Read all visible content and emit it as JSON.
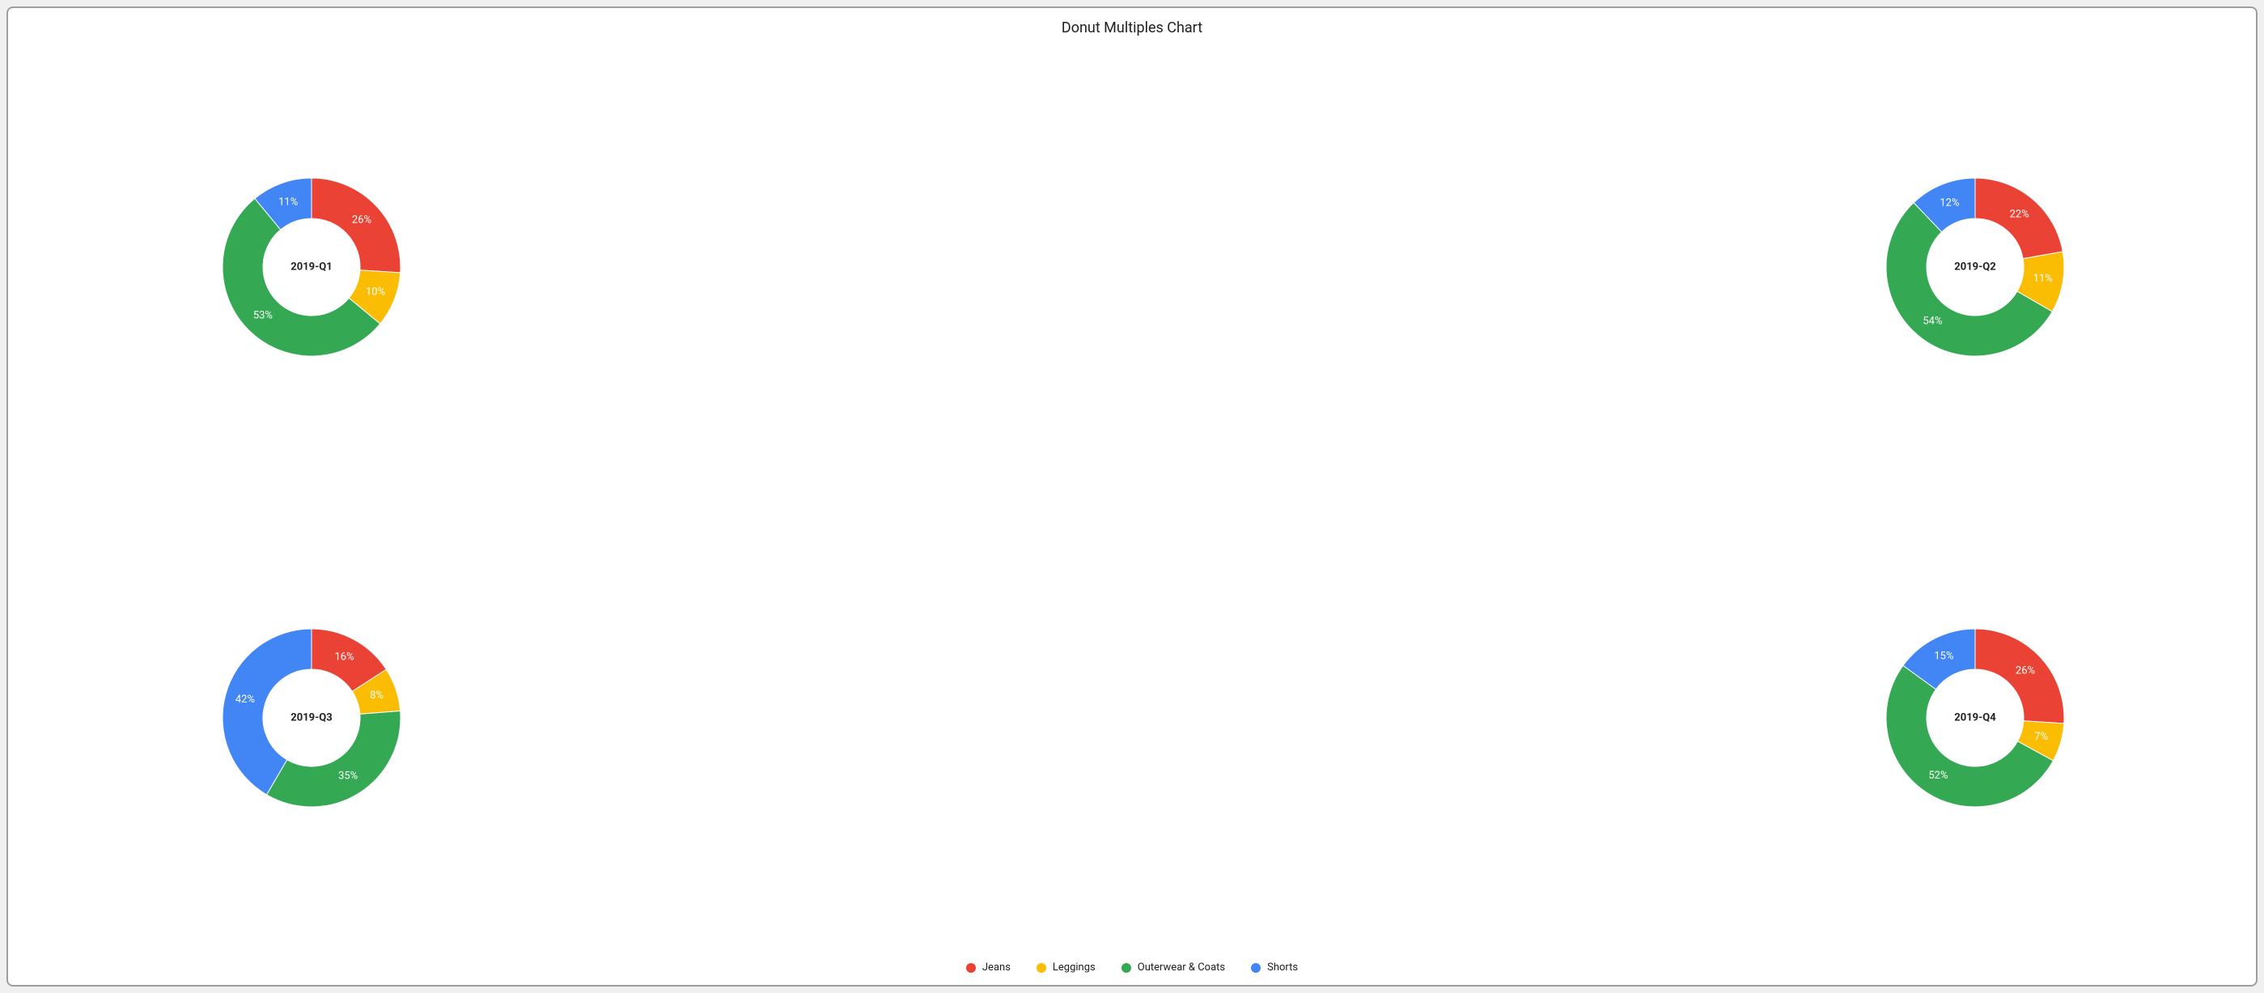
{
  "title": "Donut Multiples Chart",
  "background_color": "#ffffff",
  "border_color": "#9e9e9e",
  "label_text_color": "#ffffff",
  "center_text_color": "#202124",
  "legend_text_color": "#202124",
  "title_fontsize": 18,
  "label_fontsize": 13,
  "legend_fontsize": 13,
  "donut": {
    "outer_radius": 110,
    "inner_radius": 60,
    "label_radius": 85,
    "start_angle_deg": 0
  },
  "series": [
    {
      "key": "jeans",
      "label": "Jeans",
      "color": "#ea4335"
    },
    {
      "key": "leggings",
      "label": "Leggings",
      "color": "#fbbc04"
    },
    {
      "key": "outerwear",
      "label": "Outerwear & Coats",
      "color": "#34a853"
    },
    {
      "key": "shorts",
      "label": "Shorts",
      "color": "#4285f4"
    }
  ],
  "panels": [
    {
      "name": "2019-Q1",
      "slices": [
        {
          "series": "jeans",
          "value": 26,
          "label": "26%"
        },
        {
          "series": "leggings",
          "value": 10,
          "label": "10%"
        },
        {
          "series": "outerwear",
          "value": 53,
          "label": "53%"
        },
        {
          "series": "shorts",
          "value": 11,
          "label": "11%"
        }
      ]
    },
    {
      "name": "2019-Q2",
      "slices": [
        {
          "series": "jeans",
          "value": 22,
          "label": "22%"
        },
        {
          "series": "leggings",
          "value": 11,
          "label": "11%"
        },
        {
          "series": "outerwear",
          "value": 54,
          "label": "54%"
        },
        {
          "series": "shorts",
          "value": 12,
          "label": "12%"
        }
      ]
    },
    {
      "name": "2019-Q3",
      "slices": [
        {
          "series": "jeans",
          "value": 16,
          "label": "16%"
        },
        {
          "series": "leggings",
          "value": 8,
          "label": "8%"
        },
        {
          "series": "outerwear",
          "value": 35,
          "label": "35%"
        },
        {
          "series": "shorts",
          "value": 42,
          "label": "42%"
        }
      ]
    },
    {
      "name": "2019-Q4",
      "slices": [
        {
          "series": "jeans",
          "value": 26,
          "label": "26%"
        },
        {
          "series": "leggings",
          "value": 7,
          "label": "7%"
        },
        {
          "series": "outerwear",
          "value": 52,
          "label": "52%"
        },
        {
          "series": "shorts",
          "value": 15,
          "label": "15%"
        }
      ]
    }
  ],
  "layout": {
    "grid_cols": 2,
    "grid_rows": 2,
    "col_offsets_pct": [
      27,
      75
    ]
  }
}
